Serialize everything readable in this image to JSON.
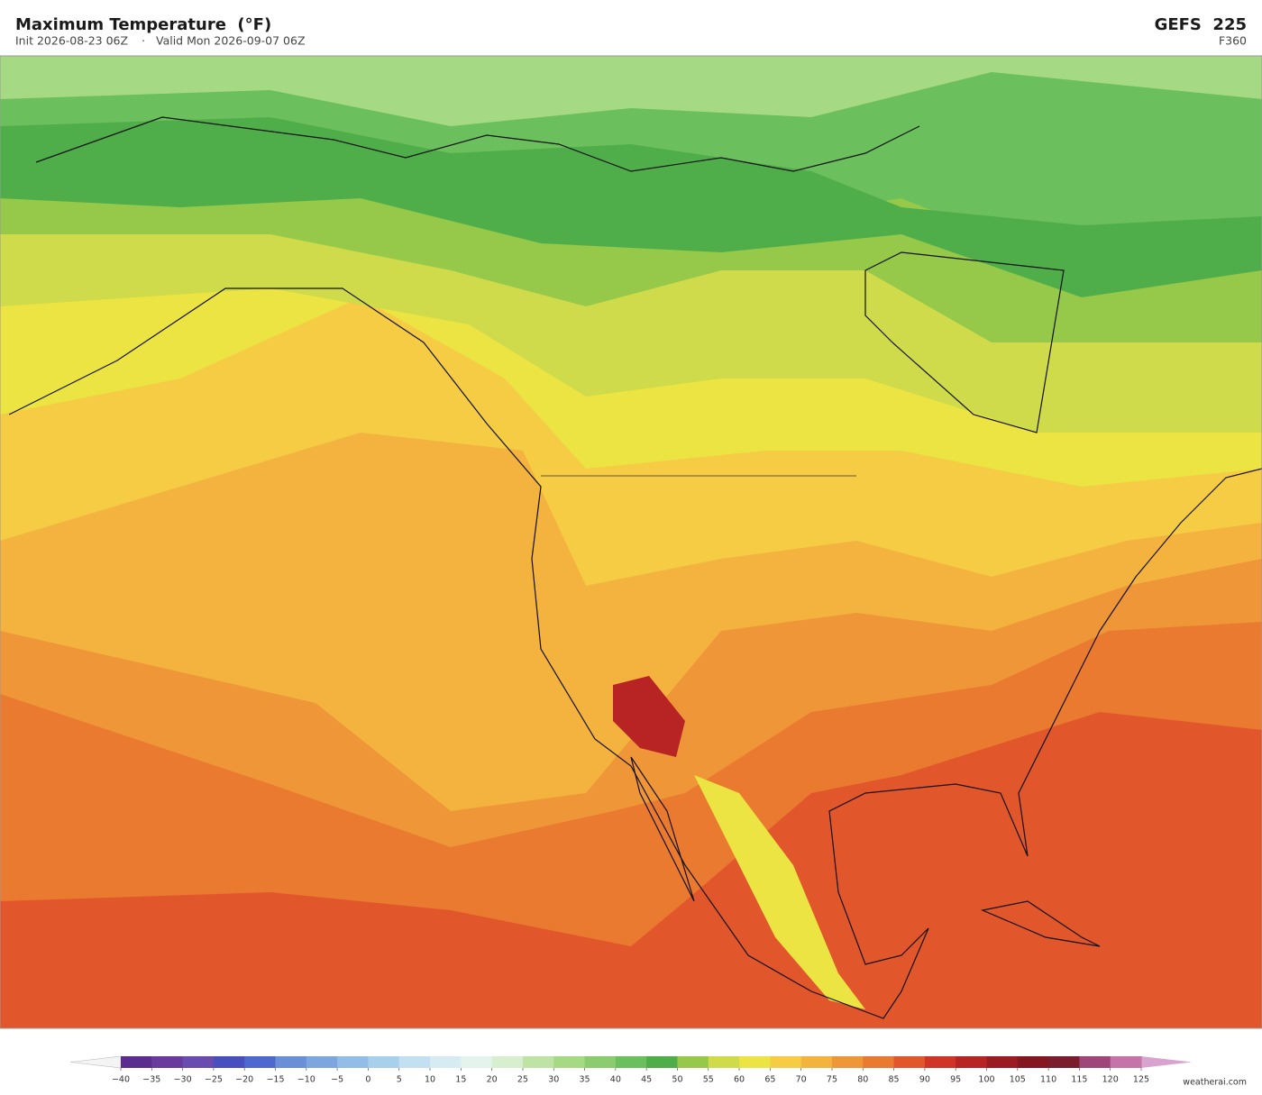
{
  "header": {
    "title": "Maximum Temperature  (°F)",
    "init": "Init 2026-08-23 06Z",
    "separator": "·",
    "valid": "Valid Mon 2026-09-07 06Z",
    "model": "GEFS  225",
    "forecast_hour": "F360"
  },
  "colorbar": {
    "ticks": [
      {
        "value": -40,
        "label": "−40"
      },
      {
        "value": -35,
        "label": "−35"
      },
      {
        "value": -30,
        "label": "−30"
      },
      {
        "value": -25,
        "label": "−25"
      },
      {
        "value": -20,
        "label": "−20"
      },
      {
        "value": -15,
        "label": "−15"
      },
      {
        "value": -10,
        "label": "−10"
      },
      {
        "value": -5,
        "label": "−5"
      },
      0,
      5,
      10,
      15,
      20,
      25,
      30,
      35,
      40,
      45,
      50,
      55,
      60,
      65,
      70,
      75,
      80,
      85,
      90,
      95,
      100,
      105,
      110,
      115,
      120,
      125
    ],
    "colors": [
      "#5b2d8e",
      "#6a3a9e",
      "#6a4cb0",
      "#4a4fc0",
      "#4f68d0",
      "#6a8fd6",
      "#7ea6de",
      "#93bde6",
      "#a9d0ea",
      "#c2e0ef",
      "#d6ecf2",
      "#e4f4ec",
      "#d8efcf",
      "#bfe3a4",
      "#a6d984",
      "#8ccc6e",
      "#6bbf5c",
      "#4fae4a",
      "#96c84a",
      "#cfdb4a",
      "#ece442",
      "#f5cc44",
      "#f3b33e",
      "#ef9638",
      "#ea7a30",
      "#e2562b",
      "#cf3426",
      "#b82424",
      "#9c1a22",
      "#851520",
      "#7a1c2e",
      "#a0457a",
      "#c474a8"
    ],
    "under_color": "#f4f4f4",
    "over_color": "#d9a3d0"
  },
  "footer": {
    "credit": "weatherai.com"
  }
}
